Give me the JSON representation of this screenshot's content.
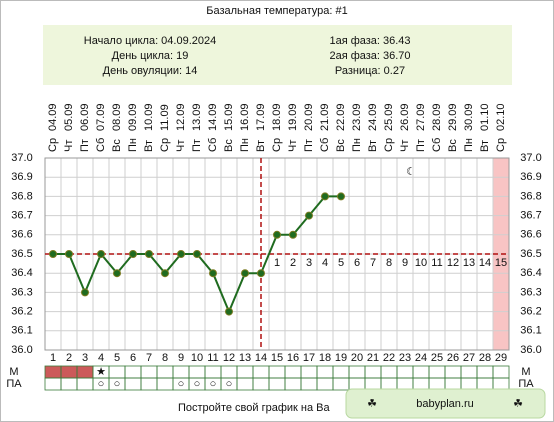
{
  "chart_data": {
    "type": "line",
    "title": "Базальная температура: #1",
    "info_left": [
      "Начало цикла: 04.09.2024",
      "День цикла: 19",
      "День овуляции: 14"
    ],
    "info_right": [
      "1ая фаза: 36.43",
      "2ая фаза: 36.70",
      "Разница: 0.27"
    ],
    "x": [
      1,
      2,
      3,
      4,
      5,
      6,
      7,
      8,
      9,
      10,
      11,
      12,
      13,
      14,
      15,
      16,
      17,
      18,
      19,
      20,
      21,
      22,
      23,
      24,
      25,
      26,
      27,
      28,
      29
    ],
    "weekdays": [
      "Ср",
      "Чт",
      "Пт",
      "Сб",
      "Вс",
      "Пн",
      "Вт",
      "Ср",
      "Чт",
      "Пт",
      "Сб",
      "Вс",
      "Пн",
      "Вт",
      "Ср",
      "Чт",
      "Пт",
      "Сб",
      "Вс",
      "Пн",
      "Вт",
      "Ср",
      "Чт",
      "Пт",
      "Сб",
      "Вс",
      "Пн",
      "Вт",
      "Ср"
    ],
    "dates": [
      "04.09",
      "05.09",
      "06.09",
      "07.09",
      "08.09",
      "09.09",
      "10.09",
      "11.09",
      "12.09",
      "13.09",
      "14.09",
      "15.09",
      "16.09",
      "17.09",
      "18.09",
      "19.09",
      "20.09",
      "21.09",
      "22.09",
      "23.09",
      "24.09",
      "25.09",
      "26.09",
      "27.09",
      "28.09",
      "29.09",
      "30.09",
      "01.10",
      "02.10"
    ],
    "series": [
      {
        "color": "#1f6b1f",
        "values": [
          36.5,
          36.5,
          36.3,
          36.5,
          36.4,
          36.5,
          36.5,
          36.4,
          36.5,
          36.5,
          36.4,
          36.2,
          36.4,
          36.4,
          36.6,
          36.6,
          36.7,
          36.8,
          36.8,
          null,
          null,
          null,
          null,
          null,
          null,
          null,
          null,
          null,
          null
        ]
      }
    ],
    "xlim": [
      0.5,
      29.5
    ],
    "ylim": [
      36.0,
      37.0
    ],
    "yticks": [
      {
        "value": 36.0,
        "label": "36.0"
      },
      36.1,
      36.2,
      36.3,
      36.4,
      36.5,
      36.6,
      36.7,
      36.8,
      36.9,
      {
        "value": 37.0,
        "label": "37.0"
      }
    ],
    "grid": true,
    "coverline": 36.5,
    "ovulation_day": 14,
    "phase_days": [
      1,
      2,
      3,
      4,
      5,
      6,
      7,
      8,
      9,
      10,
      11,
      12,
      13,
      14,
      15
    ],
    "highlight_day": 29,
    "row_labels": [
      "М",
      "ПА"
    ],
    "menstruation_days": [
      1,
      2,
      3
    ],
    "star_days": [
      4
    ],
    "pa_days": [
      4,
      5,
      9,
      10,
      11,
      12
    ],
    "star_symbol": "★",
    "pa_symbol": "○",
    "footer": "Постройте свой график на Ba",
    "brand": "babyplan.ru"
  }
}
